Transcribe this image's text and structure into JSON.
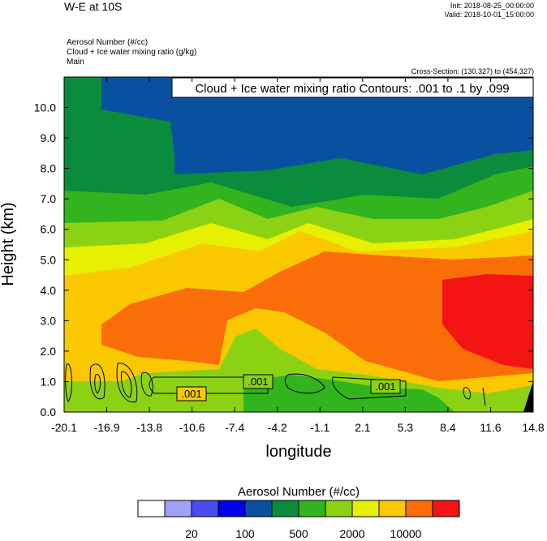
{
  "header": {
    "title": "W-E at 10S",
    "init": "Init: 2018-08-25_00:00:00",
    "valid": "Valid: 2018-10-01_15:00:00",
    "fields": [
      "Aerosol Number   (#/cc)",
      "Cloud + Ice water mixing ratio   (g/kg)",
      "Main"
    ],
    "cross_section": "Cross-Section: (130,327) to (454,327)"
  },
  "chart_data": {
    "type": "heatmap",
    "xlabel": "longitude",
    "ylabel": "Height (km)",
    "x_ticks": [
      "-20.1",
      "-16.9",
      "-13.8",
      "-10.6",
      "-7.4",
      "-4.2",
      "-1.1",
      "2.1",
      "5.3",
      "8.4",
      "11.6",
      "14.8"
    ],
    "y_ticks": [
      "0.0",
      "1.0",
      "2.0",
      "3.0",
      "4.0",
      "5.0",
      "6.0",
      "7.0",
      "8.0",
      "9.0",
      "10.0"
    ],
    "xlim": [
      -20.1,
      14.8
    ],
    "ylim": [
      0.0,
      11.0
    ],
    "contour_title": "Cloud + Ice water mixing ratio Contours: .001 to .1 by .099",
    "contour_labels": [
      ".001",
      ".001",
      ".001"
    ],
    "colorbar": {
      "title": "Aerosol Number  (#/cc)",
      "colors": [
        "#ffffff",
        "#a0a0f5",
        "#4b4bf0",
        "#0000f0",
        "#0a50a0",
        "#0a8c3c",
        "#32b41e",
        "#8cd214",
        "#e6f000",
        "#fac800",
        "#fa6e0a",
        "#f51414"
      ],
      "tick_labels": [
        "20",
        "100",
        "500",
        "2000",
        "10000"
      ]
    },
    "grid": false
  }
}
